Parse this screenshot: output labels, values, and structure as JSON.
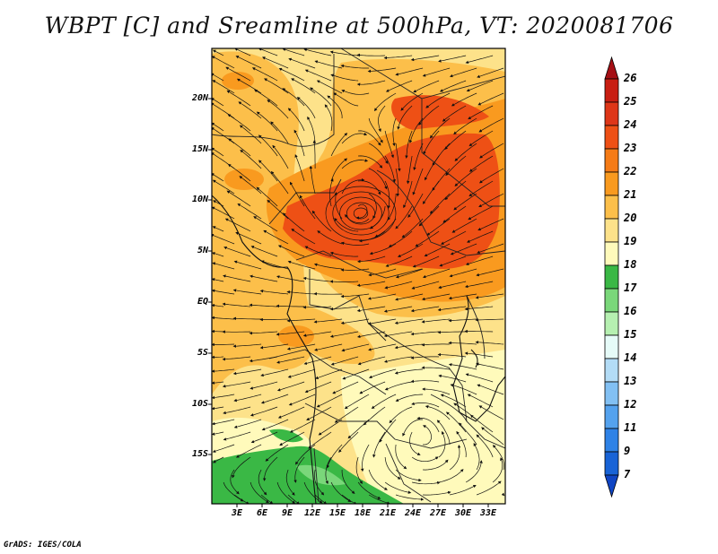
{
  "title": "WBPT [C] and Sreamline at 500hPa, VT: 2020081706",
  "footer": "GrADS: IGES/COLA",
  "map": {
    "lat_labels": [
      "20N",
      "15N",
      "10N",
      "5N",
      "EQ",
      "5S",
      "10S",
      "15S"
    ],
    "lon_labels": [
      "3E",
      "6E",
      "9E",
      "12E",
      "15E",
      "18E",
      "21E",
      "24E",
      "27E",
      "30E",
      "33E"
    ],
    "lat_range": [
      -20,
      25
    ],
    "lon_range": [
      0,
      35
    ],
    "features": [
      "wet-bulb potential temperature shading",
      "500hPa streamlines",
      "country boundaries",
      "coastlines"
    ],
    "cyclonic_center_approx": {
      "lon": 17,
      "lat": 9
    }
  },
  "colorbar": {
    "labels": [
      "26",
      "25",
      "24",
      "23",
      "22",
      "21",
      "20",
      "19",
      "18",
      "17",
      "16",
      "15",
      "14",
      "13",
      "12",
      "11",
      "9",
      "7"
    ],
    "colors": [
      "#a50f15",
      "#c81e12",
      "#de3618",
      "#ee5015",
      "#f57b16",
      "#f99a1f",
      "#fcbf4a",
      "#fde28a",
      "#fffabb",
      "#3ab845",
      "#7ad77a",
      "#b6f0b1",
      "#e6fbf8",
      "#b3dcf6",
      "#82c0f3",
      "#54a2ee",
      "#2e82e6",
      "#1863d6",
      "#0f45c4"
    ]
  }
}
